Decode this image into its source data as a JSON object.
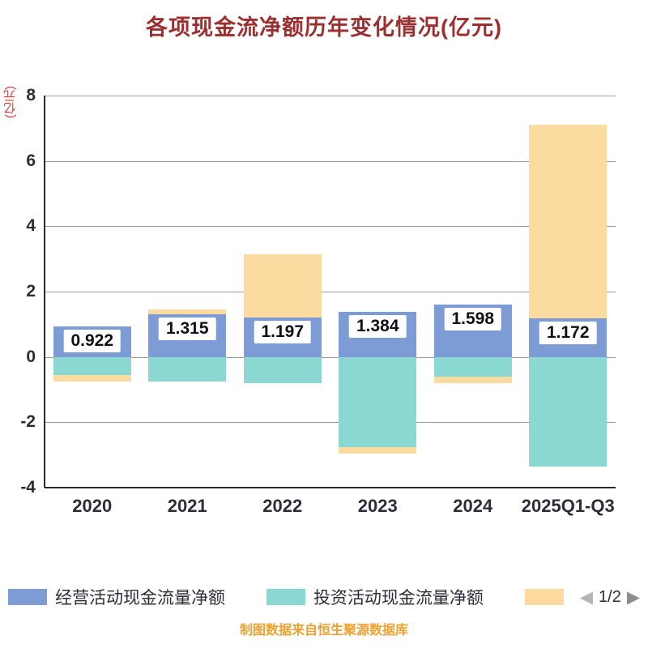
{
  "title": "各项现金流净额历年变化情况(亿元)",
  "y_axis_label": "(亿元)",
  "caption": "制图数据来自恒生聚源数据库",
  "legend": {
    "items": [
      {
        "label": "经营活动现金流量净额",
        "color": "#7D9BD4"
      },
      {
        "label": "投资活动现金流量净额",
        "color": "#8BD7D2"
      },
      {
        "label": "",
        "color": "#FBDBA0"
      }
    ],
    "pagination": {
      "prev": "◀",
      "text": "1/2",
      "next": "▶"
    }
  },
  "chart_data": {
    "type": "bar",
    "stacked": true,
    "title": "各项现金流净额历年变化情况(亿元)",
    "categories": [
      "2020",
      "2021",
      "2022",
      "2023",
      "2024",
      "2025Q1-Q3"
    ],
    "series": [
      {
        "name": "经营活动现金流量净额",
        "color": "#7D9BD4",
        "values": [
          0.922,
          1.315,
          1.197,
          1.384,
          1.598,
          1.172
        ]
      },
      {
        "name": "投资活动现金流量净额",
        "color": "#8BD7D2",
        "values": [
          -0.55,
          -0.75,
          -0.8,
          -2.75,
          -0.6,
          -3.35
        ]
      },
      {
        "name": "",
        "color": "#FBDBA0",
        "values": [
          -0.2,
          0.15,
          1.95,
          -0.2,
          -0.2,
          5.93
        ]
      }
    ],
    "bar_labels": [
      "0.922",
      "1.315",
      "1.197",
      "1.384",
      "1.598",
      "1.172"
    ],
    "xlabel": "",
    "ylabel": "(亿元)",
    "ylim": [
      -4,
      8
    ],
    "yticks": [
      8,
      6,
      4,
      2,
      0,
      -2,
      -4
    ],
    "grid": true,
    "legend_position": "bottom"
  }
}
